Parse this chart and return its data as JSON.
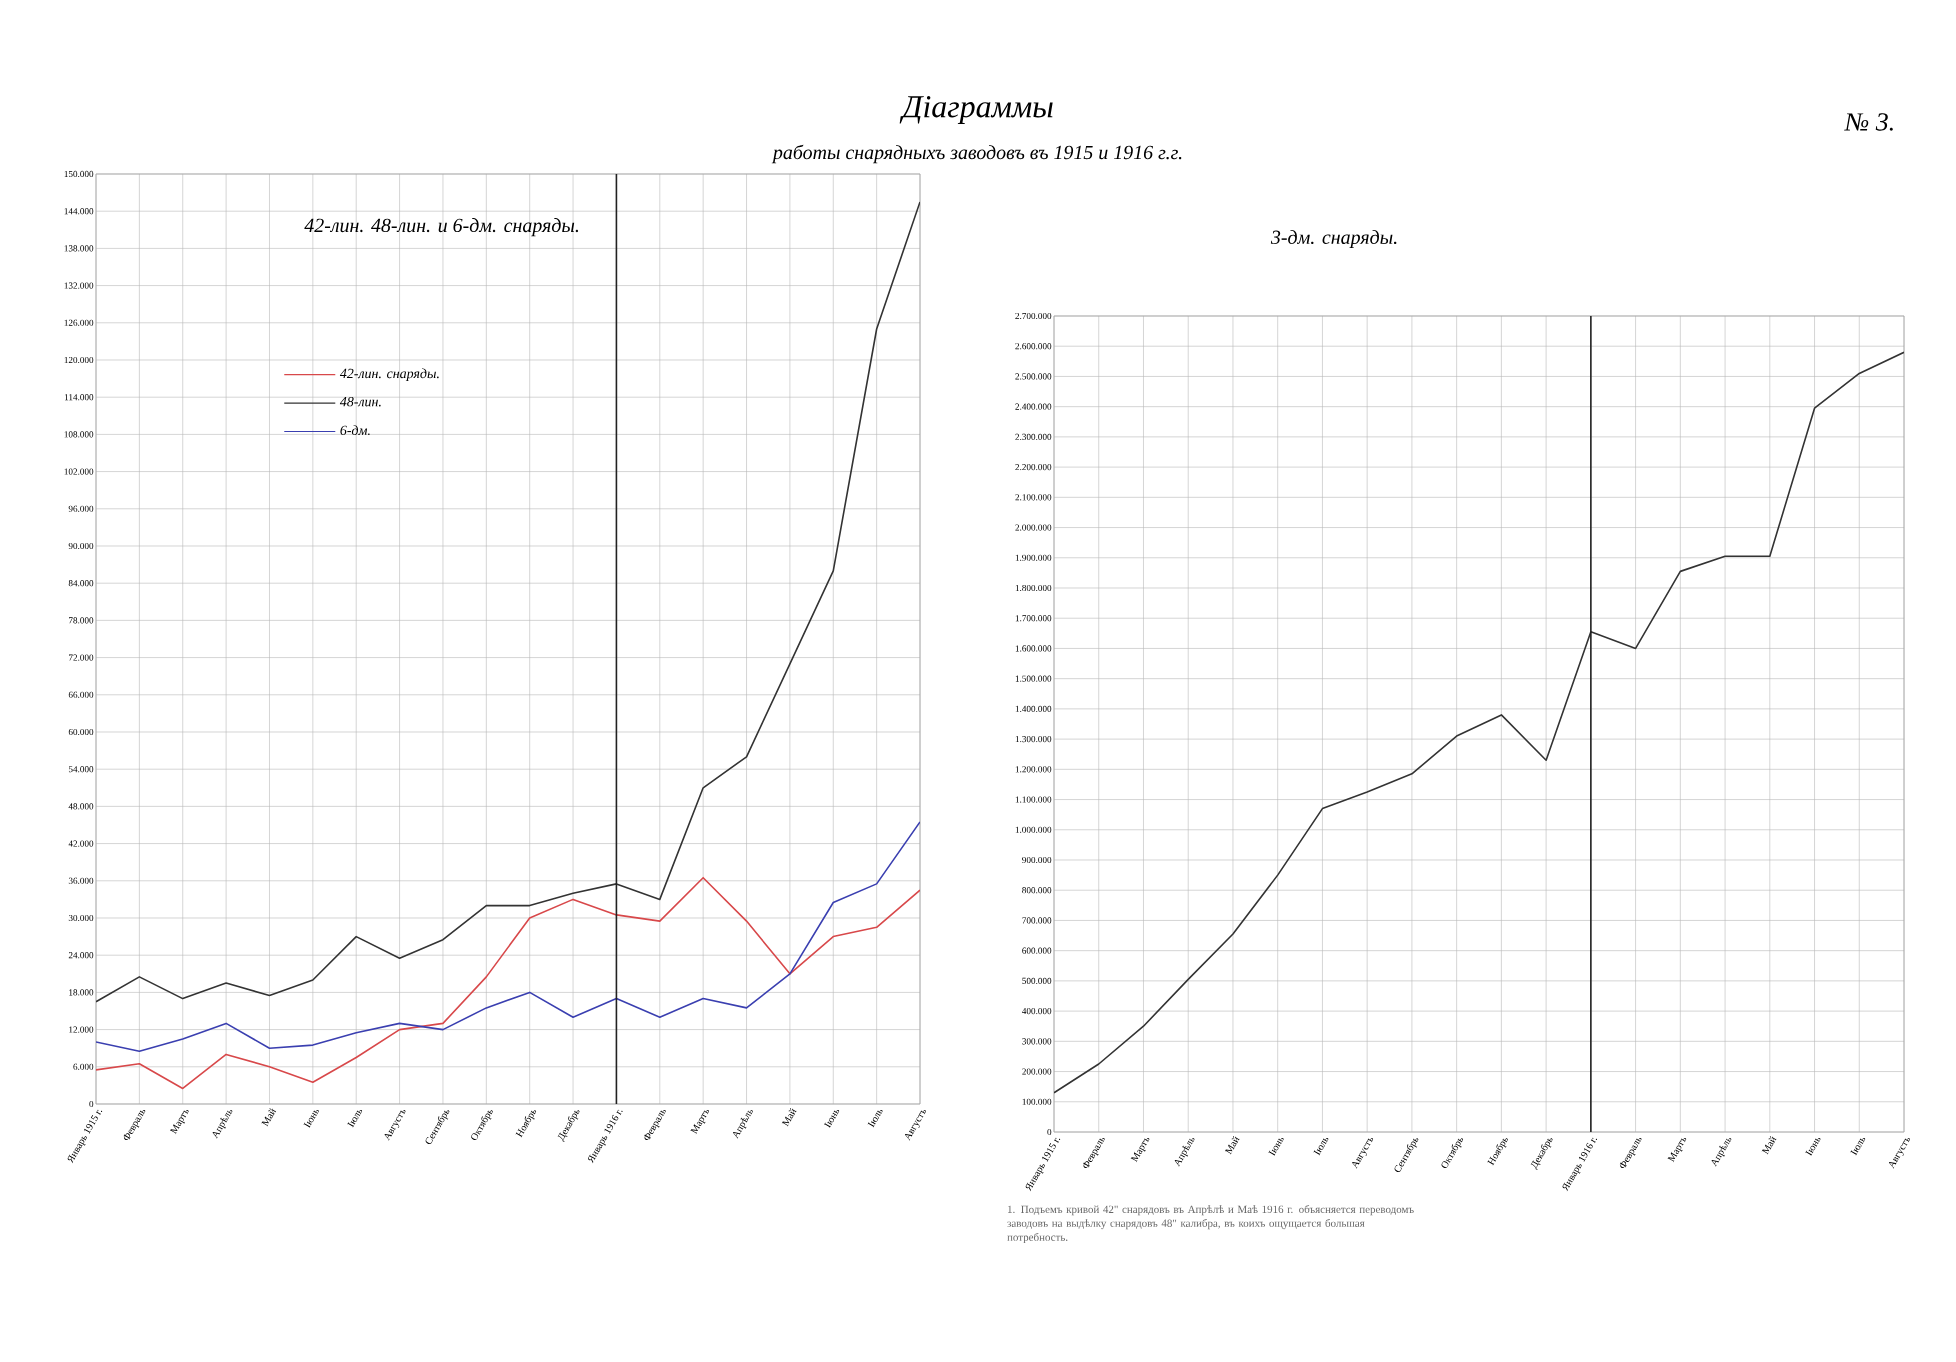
{
  "chart_data": [
    {
      "type": "line",
      "title": "42-лин. 48-лин. и 6-дм. снаряды.",
      "annotations": [
        "Діаграммы",
        "работы снарядныхъ заводовъ въ 1915 и 1916 г.г."
      ],
      "categories": [
        "Январь 1915 г.",
        "Февраль",
        "Мартъ",
        "Апрѣль",
        "Май",
        "Іюнь",
        "Іюль",
        "Августъ",
        "Сентябрь",
        "Октябрь",
        "Ноябрь",
        "Декабрь",
        "Январь 1916 г.",
        "Февраль",
        "Мартъ",
        "Апрѣль",
        "Май",
        "Іюнь",
        "Іюль",
        "Августъ"
      ],
      "series": [
        {
          "name": "42-лин. снаряды.",
          "color": "#d8484a",
          "values": [
            5500,
            6500,
            2500,
            8000,
            6000,
            3500,
            7500,
            12000,
            13000,
            20500,
            30000,
            33000,
            30500,
            29500,
            36500,
            29500,
            21000,
            27000,
            28500,
            34500
          ]
        },
        {
          "name": "48-лин.",
          "color": "#333333",
          "values": [
            16500,
            20500,
            17000,
            19500,
            17500,
            20000,
            27000,
            23500,
            26500,
            32000,
            32000,
            34000,
            35500,
            33000,
            51000,
            56000,
            71000,
            86000,
            125000,
            145500
          ]
        },
        {
          "name": "6-дм.",
          "color": "#3a3fb0",
          "values": [
            10000,
            8500,
            10500,
            13000,
            9000,
            9500,
            11500,
            13000,
            12000,
            15500,
            18000,
            14000,
            17000,
            14000,
            17000,
            15500,
            21000,
            32500,
            35500,
            45500
          ]
        }
      ],
      "ylim": [
        0,
        150000
      ],
      "yticks": [
        0,
        {
          "value": 6000,
          "label": "6.000"
        },
        {
          "value": 12000,
          "label": "12.000"
        },
        {
          "value": 18000,
          "label": "18.000"
        },
        {
          "value": 24000,
          "label": "24.000"
        },
        {
          "value": 30000,
          "label": "30.000"
        },
        {
          "value": 36000,
          "label": "36.000"
        },
        {
          "value": 42000,
          "label": "42.000"
        },
        {
          "value": 48000,
          "label": "48.000"
        },
        {
          "value": 54000,
          "label": "54.000"
        },
        {
          "value": 60000,
          "label": "60.000"
        },
        {
          "value": 66000,
          "label": "66.000"
        },
        {
          "value": 72000,
          "label": "72.000"
        },
        {
          "value": 78000,
          "label": "78.000"
        },
        {
          "value": 84000,
          "label": "84.000"
        },
        {
          "value": 90000,
          "label": "90.000"
        },
        {
          "value": 96000,
          "label": "96.000"
        },
        {
          "value": 102000,
          "label": "102.000"
        },
        {
          "value": 108000,
          "label": "108.000"
        },
        {
          "value": 114000,
          "label": "114.000"
        },
        {
          "value": 120000,
          "label": "120.000"
        },
        {
          "value": 126000,
          "label": "126.000"
        },
        {
          "value": 132000,
          "label": "132.000"
        },
        {
          "value": 138000,
          "label": "138.000"
        },
        {
          "value": 144000,
          "label": "144.000"
        },
        {
          "value": 150000,
          "label": "150.000"
        }
      ],
      "ref_lines": [
        {
          "axis": "x",
          "value": "Январь 1916 г.",
          "color": "#222222"
        }
      ],
      "grid": true,
      "legend": "top left"
    },
    {
      "type": "line",
      "title": "3-дм. снаряды.",
      "annotations": [
        "№ 3.",
        "1. Подъемъ кривой 42\" снарядовъ въ Апрѣлѣ и Маѣ 1916 г. объясняется переводомъ заводовъ на выдѣлку снарядовъ 48\" калибра, въ коихъ ощущается большая потребность."
      ],
      "categories": [
        "Январь 1915 г.",
        "Февраль",
        "Мартъ",
        "Апрѣль",
        "Май",
        "Іюнь",
        "Іюль",
        "Августъ",
        "Сентябрь",
        "Октябрь",
        "Ноябрь",
        "Декабрь",
        "Январь 1916 г.",
        "Февраль",
        "Мартъ",
        "Апрѣль",
        "Май",
        "Іюнь",
        "Іюль",
        "Августъ"
      ],
      "series": [
        {
          "color": "#333333",
          "values": [
            130000,
            225000,
            350000,
            505000,
            655000,
            850000,
            1070000,
            1125000,
            1185000,
            1310000,
            1380000,
            1230000,
            1655000,
            1600000,
            1855000,
            1905000,
            1905000,
            2395000,
            2510000,
            2580000
          ]
        }
      ],
      "ylim": [
        0,
        2700000
      ],
      "yticks": [
        0,
        {
          "value": 100000,
          "label": "100.000"
        },
        {
          "value": 200000,
          "label": "200.000"
        },
        {
          "value": 300000,
          "label": "300.000"
        },
        {
          "value": 400000,
          "label": "400.000"
        },
        {
          "value": 500000,
          "label": "500.000"
        },
        {
          "value": 600000,
          "label": "600.000"
        },
        {
          "value": 700000,
          "label": "700.000"
        },
        {
          "value": 800000,
          "label": "800.000"
        },
        {
          "value": 900000,
          "label": "900.000"
        },
        {
          "value": 1000000,
          "label": "1.000.000"
        },
        {
          "value": 1100000,
          "label": "1.100.000"
        },
        {
          "value": 1200000,
          "label": "1.200.000"
        },
        {
          "value": 1300000,
          "label": "1.300.000"
        },
        {
          "value": 1400000,
          "label": "1.400.000"
        },
        {
          "value": 1500000,
          "label": "1.500.000"
        },
        {
          "value": 1600000,
          "label": "1.600.000"
        },
        {
          "value": 1700000,
          "label": "1.700.000"
        },
        {
          "value": 1800000,
          "label": "1.800.000"
        },
        {
          "value": 1900000,
          "label": "1.900.000"
        },
        {
          "value": 2000000,
          "label": "2.000.000"
        },
        {
          "value": 2100000,
          "label": "2.100.000"
        },
        {
          "value": 2200000,
          "label": "2.200.000"
        },
        {
          "value": 2300000,
          "label": "2.300.000"
        },
        {
          "value": 2400000,
          "label": "2.400.000"
        },
        {
          "value": 2500000,
          "label": "2.500.000"
        },
        {
          "value": 2600000,
          "label": "2.600.000"
        },
        {
          "value": 2700000,
          "label": "2.700.000"
        }
      ],
      "ref_lines": [
        {
          "axis": "x",
          "value": "Январь 1916 г.",
          "color": "#222222"
        }
      ],
      "grid": true
    }
  ]
}
